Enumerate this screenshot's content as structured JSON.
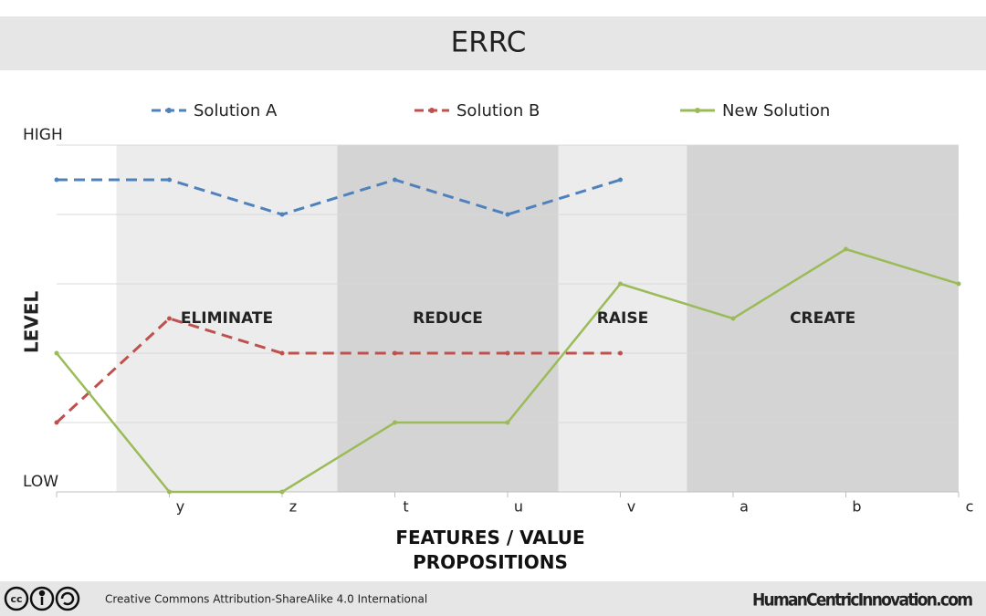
{
  "chart_data": {
    "type": "line",
    "title": "ERRC",
    "ylabel": "LEVEL",
    "xlabel": "FEATURES / VALUE PROPOSITIONS",
    "categories": [
      null,
      "y",
      "z",
      "t",
      "u",
      "v",
      "a",
      "b",
      "c"
    ],
    "series": [
      {
        "name": "Solution A",
        "color": "#4f81bd",
        "dashed": true,
        "values": [
          4.5,
          4.5,
          4,
          4.5,
          4,
          4.5,
          null,
          null,
          null
        ]
      },
      {
        "name": "Solution B",
        "color": "#c0504d",
        "dashed": true,
        "values": [
          1,
          2.5,
          2,
          2,
          2,
          2,
          null,
          null,
          null
        ]
      },
      {
        "name": "New Solution",
        "color": "#9bbb59",
        "dashed": false,
        "values": [
          2,
          0,
          0,
          1,
          1,
          3,
          2.5,
          3.5,
          3
        ]
      }
    ],
    "ylim": [
      0,
      5
    ],
    "yticks": [
      {
        "value": 0,
        "label": "LOW"
      },
      {
        "value": 1,
        "label": null
      },
      {
        "value": 2,
        "label": null
      },
      {
        "value": 3,
        "label": null
      },
      {
        "value": 4,
        "label": null
      },
      {
        "value": 5,
        "label": "HIGH"
      }
    ],
    "grid": true,
    "legend": "top",
    "regions": [
      {
        "label": "ELIMINATE",
        "from": 0.53,
        "to": 2.49,
        "color": "#ececec"
      },
      {
        "label": "REDUCE",
        "from": 2.49,
        "to": 4.45,
        "color": "#d4d4d4"
      },
      {
        "label": "RAISE",
        "from": 4.45,
        "to": 5.59,
        "color": "#ececec"
      },
      {
        "label": "CREATE",
        "from": 5.59,
        "to": 8,
        "color": "#d4d4d4"
      }
    ]
  },
  "footer": {
    "license": "Creative Commons Attribution-ShareAlike 4.0 International",
    "site": "HumanCentricInnovation.com"
  }
}
